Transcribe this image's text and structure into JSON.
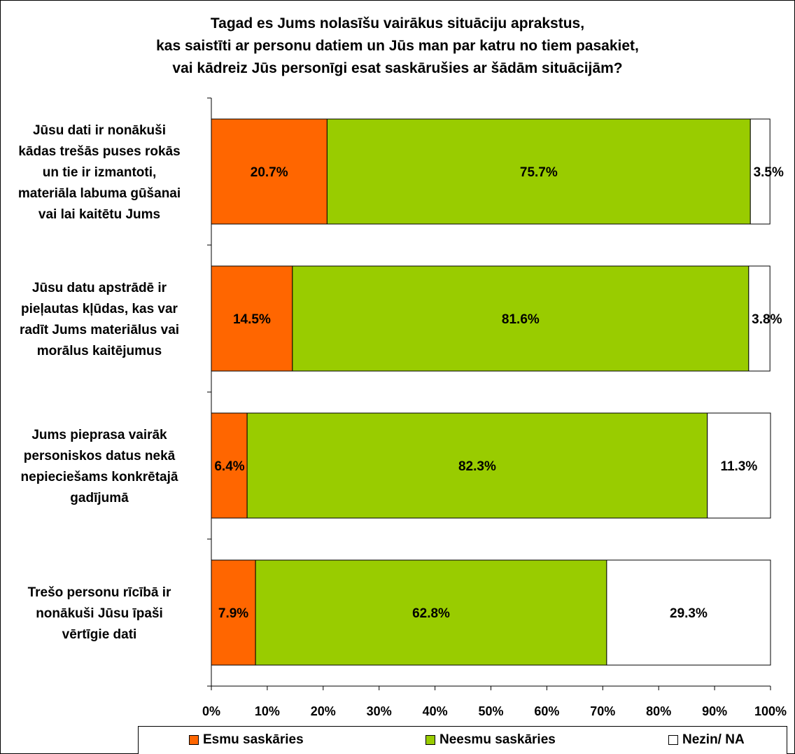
{
  "title_lines": [
    "Tagad es Jums nolasīšu vairākus situāciju aprakstus,",
    "kas saistīti ar personu datiem un Jūs man par katru no tiem pasakiet,",
    "vai kādreiz Jūs personīgi esat saskārušies ar šādām situācijām?"
  ],
  "colors": {
    "esmu": "#FF6600",
    "neesmu": "#99CC00",
    "nezin": "#FFFFFF"
  },
  "chart_data": {
    "type": "bar",
    "orientation": "horizontal",
    "stacked": "percent",
    "title": "Tagad es Jums nolasīšu vairākus situāciju aprakstus, kas saistīti ar personu datiem un Jūs man par katru no tiem pasakiet, vai kādreiz Jūs personīgi esat saskārušies ar šādām situācijām?",
    "categories": [
      [
        "Jūsu dati ir nonākuši",
        "kādas trešās puses rokās",
        "un tie ir izmantoti,",
        "materiāla labuma gūšanai",
        "vai lai kaitētu Jums"
      ],
      [
        "Jūsu datu apstrādē ir",
        "pieļautas kļūdas, kas var",
        "radīt Jums materiālus vai",
        "morālus kaitējumus"
      ],
      [
        "Jums pieprasa vairāk",
        "personiskos datus nekā",
        "nepieciešams konkrētajā",
        "gadījumā"
      ],
      [
        "Trešo personu rīcībā ir",
        "nonākuši Jūsu īpaši",
        "vērtīgie dati"
      ]
    ],
    "series": [
      {
        "name": "Esmu saskāries",
        "values": [
          20.7,
          14.5,
          6.4,
          7.9
        ],
        "labels": [
          "20.7%",
          "14.5%",
          "6.4%",
          "7.9%"
        ]
      },
      {
        "name": "Neesmu saskāries",
        "values": [
          75.7,
          81.6,
          82.3,
          62.8
        ],
        "labels": [
          "75.7%",
          "81.6%",
          "82.3%",
          "62.8%"
        ]
      },
      {
        "name": "Nezin/ NA",
        "values": [
          3.5,
          3.8,
          11.3,
          29.3
        ],
        "labels": [
          "3.5%",
          "3.8%",
          "11.3%",
          "29.3%"
        ]
      }
    ],
    "x_ticks": [
      "0%",
      "10%",
      "20%",
      "30%",
      "40%",
      "50%",
      "60%",
      "70%",
      "80%",
      "90%",
      "100%"
    ],
    "xlim": [
      0,
      100
    ],
    "legend_position": "bottom",
    "grid": false
  }
}
